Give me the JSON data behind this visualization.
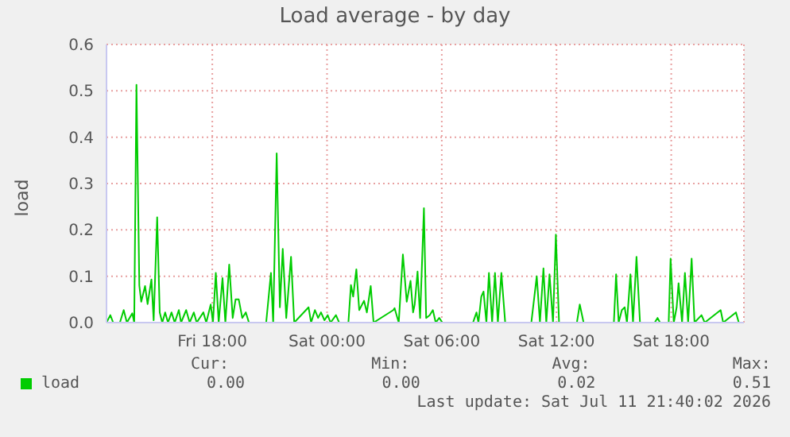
{
  "chart_data": {
    "type": "line",
    "title": "Load average - by day",
    "ylabel": "load",
    "x": [
      "2026-07-10T12:28",
      "2026-07-10T12:40",
      "2026-07-10T12:49",
      "2026-07-10T13:10",
      "2026-07-10T13:22",
      "2026-07-10T13:32",
      "2026-07-10T13:49",
      "2026-07-10T13:55",
      "2026-07-10T14:02",
      "2026-07-10T14:11",
      "2026-07-10T14:17",
      "2026-07-10T14:29",
      "2026-07-10T14:37",
      "2026-07-10T14:49",
      "2026-07-10T14:56",
      "2026-07-10T15:07",
      "2026-07-10T15:15",
      "2026-07-10T15:23",
      "2026-07-10T15:32",
      "2026-07-10T15:41",
      "2026-07-10T15:52",
      "2026-07-10T16:02",
      "2026-07-10T16:15",
      "2026-07-10T16:22",
      "2026-07-10T16:38",
      "2026-07-10T16:49",
      "2026-07-10T17:02",
      "2026-07-10T17:11",
      "2026-07-10T17:32",
      "2026-07-10T17:41",
      "2026-07-10T17:55",
      "2026-07-10T18:02",
      "2026-07-10T18:11",
      "2026-07-10T18:20",
      "2026-07-10T18:32",
      "2026-07-10T18:41",
      "2026-07-10T18:53",
      "2026-07-10T19:04",
      "2026-07-10T19:13",
      "2026-07-10T19:23",
      "2026-07-10T19:34",
      "2026-07-10T19:45",
      "2026-07-10T19:55",
      "2026-07-10T20:49",
      "2026-07-10T21:04",
      "2026-07-10T21:11",
      "2026-07-10T21:22",
      "2026-07-10T21:32",
      "2026-07-10T21:41",
      "2026-07-10T21:52",
      "2026-07-10T22:07",
      "2026-07-10T22:17",
      "2026-07-10T23:02",
      "2026-07-10T23:10",
      "2026-07-10T23:22",
      "2026-07-10T23:32",
      "2026-07-10T23:41",
      "2026-07-10T23:52",
      "2026-07-11T00:02",
      "2026-07-11T00:11",
      "2026-07-11T00:28",
      "2026-07-11T00:38",
      "2026-07-11T01:07",
      "2026-07-11T01:15",
      "2026-07-11T01:22",
      "2026-07-11T01:32",
      "2026-07-11T01:41",
      "2026-07-11T01:56",
      "2026-07-11T02:05",
      "2026-07-11T02:17",
      "2026-07-11T02:26",
      "2026-07-11T03:28",
      "2026-07-11T03:32",
      "2026-07-11T03:45",
      "2026-07-11T03:58",
      "2026-07-11T04:10",
      "2026-07-11T04:22",
      "2026-07-11T04:30",
      "2026-07-11T04:35",
      "2026-07-11T04:44",
      "2026-07-11T04:52",
      "2026-07-11T05:04",
      "2026-07-11T05:11",
      "2026-07-11T05:22",
      "2026-07-11T05:32",
      "2026-07-11T05:41",
      "2026-07-11T05:52",
      "2026-07-11T06:02",
      "2026-07-11T07:38",
      "2026-07-11T07:49",
      "2026-07-11T07:55",
      "2026-07-11T08:04",
      "2026-07-11T08:11",
      "2026-07-11T08:20",
      "2026-07-11T08:28",
      "2026-07-11T08:38",
      "2026-07-11T08:47",
      "2026-07-11T08:56",
      "2026-07-11T09:07",
      "2026-07-11T09:19",
      "2026-07-11T10:41",
      "2026-07-11T10:58",
      "2026-07-11T11:08",
      "2026-07-11T11:19",
      "2026-07-11T11:28",
      "2026-07-11T11:38",
      "2026-07-11T11:49",
      "2026-07-11T11:58",
      "2026-07-11T12:08",
      "2026-07-11T13:04",
      "2026-07-11T13:13",
      "2026-07-11T13:25",
      "2026-07-11T15:00",
      "2026-07-11T15:07",
      "2026-07-11T15:15",
      "2026-07-11T15:25",
      "2026-07-11T15:34",
      "2026-07-11T15:41",
      "2026-07-11T15:52",
      "2026-07-11T16:00",
      "2026-07-11T16:11",
      "2026-07-11T16:22",
      "2026-07-11T17:08",
      "2026-07-11T17:17",
      "2026-07-11T17:25",
      "2026-07-11T17:52",
      "2026-07-11T17:58",
      "2026-07-11T18:08",
      "2026-07-11T18:17",
      "2026-07-11T18:23",
      "2026-07-11T18:34",
      "2026-07-11T18:43",
      "2026-07-11T18:53",
      "2026-07-11T19:04",
      "2026-07-11T19:13",
      "2026-07-11T19:35",
      "2026-07-11T19:45",
      "2026-07-11T20:35",
      "2026-07-11T20:43",
      "2026-07-11T21:23",
      "2026-07-11T21:32"
    ],
    "series": [
      {
        "name": "load",
        "color": "#00cc00",
        "values": [
          0,
          0.016,
          0,
          0,
          0.027,
          0,
          0.02,
          0,
          0.513,
          0.08,
          0.045,
          0.079,
          0.04,
          0.093,
          0.005,
          0.227,
          0.022,
          0,
          0.022,
          0,
          0.022,
          0,
          0.027,
          0,
          0.027,
          0,
          0.022,
          0,
          0.022,
          0,
          0.039,
          0,
          0.107,
          0,
          0.096,
          0,
          0.125,
          0.01,
          0.05,
          0.05,
          0.01,
          0.022,
          0,
          0,
          0.107,
          0,
          0.365,
          0.033,
          0.159,
          0.01,
          0.142,
          0,
          0.033,
          0,
          0.027,
          0.01,
          0.022,
          0.005,
          0.016,
          0,
          0.016,
          0,
          0,
          0.081,
          0.056,
          0.115,
          0.027,
          0.047,
          0.022,
          0.079,
          0,
          0.027,
          0.031,
          0,
          0.147,
          0.045,
          0.09,
          0.022,
          0.039,
          0.11,
          0.01,
          0.247,
          0.01,
          0.016,
          0.027,
          0,
          0.01,
          0,
          0,
          0.022,
          0,
          0.056,
          0.067,
          0,
          0.107,
          0,
          0.107,
          0,
          0.107,
          0,
          0,
          0.1,
          0,
          0.117,
          0,
          0.104,
          0,
          0.19,
          0,
          0,
          0.039,
          0,
          0,
          0.104,
          0,
          0.027,
          0.033,
          0,
          0.104,
          0,
          0.142,
          0,
          0,
          0.01,
          0,
          0,
          0.138,
          0,
          0.033,
          0.085,
          0,
          0.107,
          0,
          0.138,
          0,
          0.016,
          0,
          0.027,
          0,
          0.022,
          0
        ]
      }
    ],
    "xlim": [
      "2026-07-10T12:28",
      "2026-07-11T21:48"
    ],
    "xticks": [
      {
        "value": "2026-07-10T18:00",
        "label": "Fri 18:00"
      },
      {
        "value": "2026-07-11T00:00",
        "label": "Sat 00:00"
      },
      {
        "value": "2026-07-11T06:00",
        "label": "Sat 06:00"
      },
      {
        "value": "2026-07-11T12:00",
        "label": "Sat 12:00"
      },
      {
        "value": "2026-07-11T18:00",
        "label": "Sat 18:00"
      }
    ],
    "ylim": [
      0,
      0.6
    ],
    "yticks": [
      {
        "value": 0,
        "label": "0.0"
      },
      {
        "value": 0.1,
        "label": "0.1"
      },
      {
        "value": 0.2,
        "label": "0.2"
      },
      {
        "value": 0.3,
        "label": "0.3"
      },
      {
        "value": 0.4,
        "label": "0.4"
      },
      {
        "value": 0.5,
        "label": "0.5"
      },
      {
        "value": 0.6,
        "label": "0.6"
      }
    ],
    "grid": true,
    "legend": "bottom left",
    "marker": "none",
    "line_style": "solid",
    "annotations": [
      "Cur:",
      "Min:",
      "Avg:",
      "Max:",
      "0.00",
      "0.00",
      "0.02",
      "0.51",
      "Last update: Sat Jul 11 21:40:02 2026"
    ]
  }
}
